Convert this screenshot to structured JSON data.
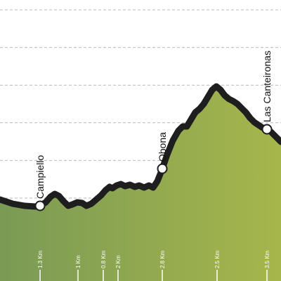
{
  "chart_data": {
    "type": "area",
    "title": "",
    "xlabel": "",
    "ylabel": "",
    "grid": true,
    "gridline_count": 7,
    "colors": {
      "fill_left": "#7a9a55",
      "fill_right": "#a6b64b",
      "line": "#1e1e1e",
      "grid": "#b9b9b9"
    },
    "x_range": [
      0,
      400
    ],
    "elevation_range": [
      0,
      400
    ],
    "profile": [
      [
        0,
        116
      ],
      [
        18,
        110
      ],
      [
        35,
        107
      ],
      [
        50,
        106
      ],
      [
        57,
        107
      ],
      [
        65,
        112
      ],
      [
        72,
        120
      ],
      [
        78,
        124
      ],
      [
        84,
        121
      ],
      [
        90,
        114
      ],
      [
        97,
        107
      ],
      [
        103,
        109
      ],
      [
        110,
        112
      ],
      [
        117,
        111
      ],
      [
        123,
        107
      ],
      [
        130,
        110
      ],
      [
        137,
        116
      ],
      [
        144,
        122
      ],
      [
        150,
        129
      ],
      [
        156,
        134
      ],
      [
        160,
        132
      ],
      [
        166,
        136
      ],
      [
        172,
        138
      ],
      [
        178,
        135
      ],
      [
        185,
        137
      ],
      [
        192,
        134
      ],
      [
        198,
        136
      ],
      [
        205,
        133
      ],
      [
        212,
        136
      ],
      [
        218,
        133
      ],
      [
        224,
        142
      ],
      [
        230,
        157
      ],
      [
        238,
        180
      ],
      [
        246,
        200
      ],
      [
        254,
        214
      ],
      [
        260,
        220
      ],
      [
        266,
        220
      ],
      [
        272,
        230
      ],
      [
        278,
        240
      ],
      [
        284,
        245
      ],
      [
        290,
        252
      ],
      [
        296,
        262
      ],
      [
        302,
        272
      ],
      [
        308,
        277
      ],
      [
        314,
        272
      ],
      [
        320,
        264
      ],
      [
        326,
        259
      ],
      [
        332,
        256
      ],
      [
        338,
        252
      ],
      [
        344,
        246
      ],
      [
        350,
        240
      ],
      [
        356,
        232
      ],
      [
        362,
        226
      ],
      [
        368,
        222
      ],
      [
        374,
        218
      ],
      [
        380,
        216
      ],
      [
        386,
        212
      ],
      [
        392,
        206
      ],
      [
        400,
        198
      ]
    ],
    "distance_ticks": [
      {
        "label": "1.3 Km",
        "x": 57
      },
      {
        "label": "1 Km",
        "x": 111
      },
      {
        "label": "0.8 Km",
        "x": 147
      },
      {
        "label": "2 Km",
        "x": 168
      },
      {
        "label": "2.8 Km",
        "x": 231
      },
      {
        "label": "2.5 Km",
        "x": 309
      },
      {
        "label": "3.5 Km",
        "x": 380
      }
    ],
    "places": [
      {
        "label": "Campiello",
        "x": 57
      },
      {
        "label": "Obona",
        "x": 231
      },
      {
        "label": "Las Canteironas",
        "x": 380
      }
    ]
  }
}
